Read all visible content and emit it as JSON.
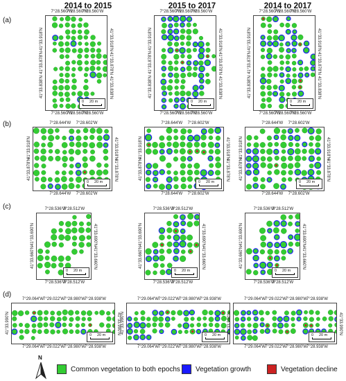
{
  "columns": [
    "2014 to 2015",
    "2015 to 2017",
    "2014 to 2017"
  ],
  "rows": [
    {
      "label": "(a)",
      "top": [
        "7°28.560'W",
        "7°28.560'W",
        "7°28.560'W"
      ],
      "bottom": [
        "7°28.560'W",
        "7°28.560'W",
        "7°28.560'W"
      ],
      "left": [
        "41°33.918'N",
        "41°33.878'N",
        "41°33.838'N"
      ],
      "right": [
        "41°33.918'N",
        "41°33.878'N",
        "41°33.838'N"
      ],
      "scale": "20 m"
    },
    {
      "label": "(b)",
      "top": [
        "7°28.644'W",
        "7°28.602'W"
      ],
      "bottom": [
        "7°28.644'W",
        "7°28.602'W"
      ],
      "left": [
        "41°33.918'N",
        "41°33.878'N"
      ],
      "right": [
        "41°33.918'N",
        "41°33.878'N"
      ],
      "scale": "20 m"
    },
    {
      "label": "(c)",
      "top": [
        "7°28.536'W",
        "7°28.512'W"
      ],
      "bottom": [
        "7°28.536'W",
        "7°28.512'W"
      ],
      "left": [
        "41°33.690'N",
        "41°33.660'N"
      ],
      "right": [
        "41°33.690'N",
        "41°33.660'N"
      ],
      "scale": "20 m"
    },
    {
      "label": "(d)",
      "top": [
        "7°29.064'W",
        "7°29.022'W",
        "7°28.980'W",
        "7°28.938'W"
      ],
      "bottom": [
        "7°29.064'W",
        "7°29.022'W",
        "7°28.980'W",
        "7°28.938'W"
      ],
      "left": [
        "41°33.990'N"
      ],
      "right": [
        "41°33.990'N"
      ],
      "scale": "20 m"
    }
  ],
  "scale_zero": "0",
  "legend": {
    "items": [
      {
        "label": "Common vegetation to both epochs",
        "color": "#33cc33"
      },
      {
        "label": "Vegetation growth",
        "color": "#1a1aff"
      },
      {
        "label": "Vegetation decline",
        "color": "#cc2222"
      }
    ]
  },
  "north": "N",
  "colors": {
    "common": "#33cc33",
    "growth": "#1a1aff",
    "decline": "#cc2222",
    "background": "#d8f0e8"
  }
}
